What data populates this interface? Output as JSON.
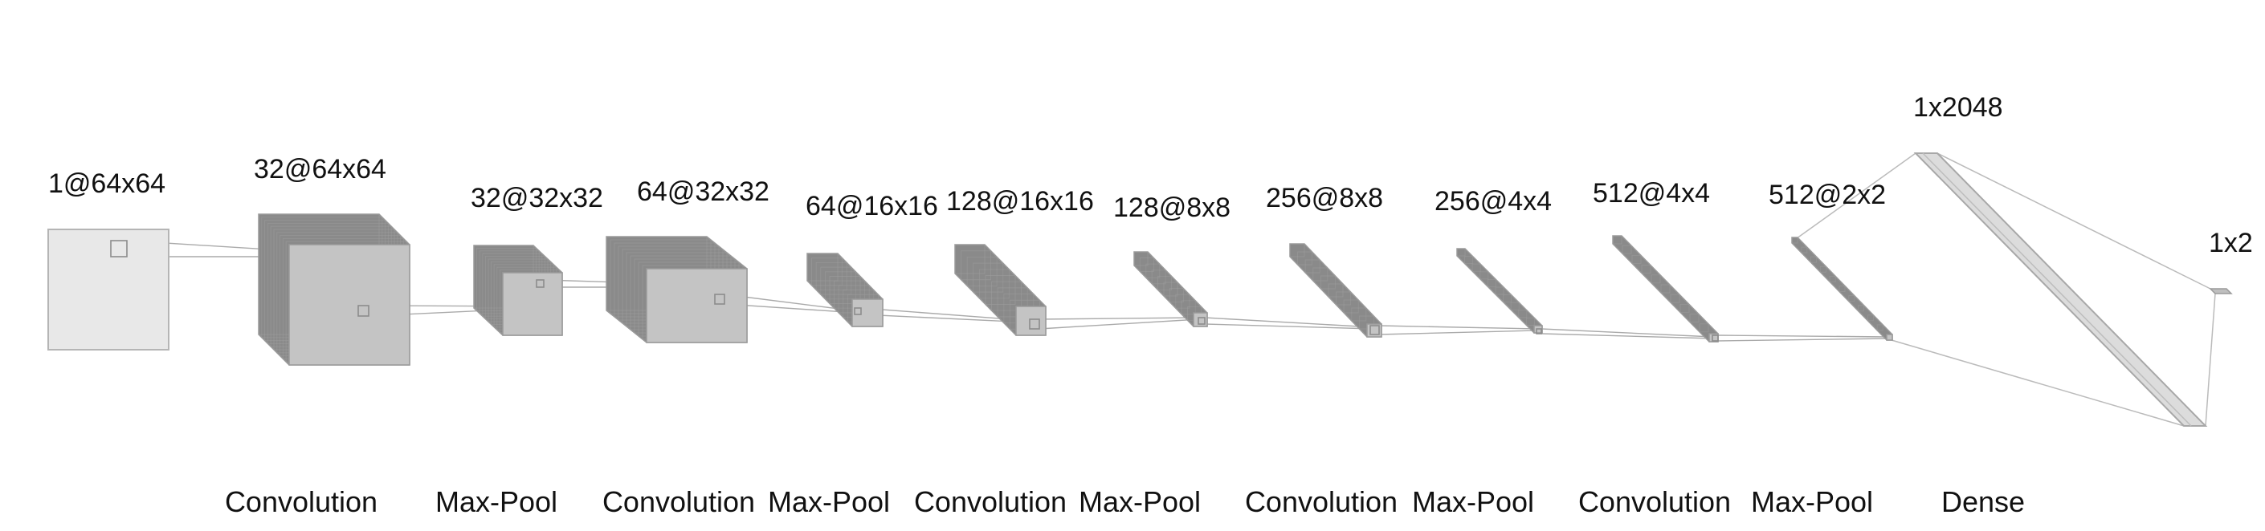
{
  "diagram": {
    "layers": [
      {
        "label": "1@64x64"
      },
      {
        "label": "32@64x64"
      },
      {
        "label": "32@32x32"
      },
      {
        "label": "64@32x32"
      },
      {
        "label": "64@16x16"
      },
      {
        "label": "128@16x16"
      },
      {
        "label": "128@8x8"
      },
      {
        "label": "256@8x8"
      },
      {
        "label": "256@4x4"
      },
      {
        "label": "512@4x4"
      },
      {
        "label": "512@2x2"
      },
      {
        "label": "1x2048"
      },
      {
        "label": "1x2"
      }
    ],
    "operations": [
      "Convolution",
      "Max-Pool",
      "Convolution",
      "Max-Pool",
      "Convolution",
      "Max-Pool",
      "Convolution",
      "Max-Pool",
      "Convolution",
      "Max-Pool",
      "Dense"
    ],
    "colors": {
      "fill_light": "#e6e6e6",
      "fill_mid": "#c4c4c4",
      "fill_dark": "#8a8a8a",
      "edge": "#9a9a9a",
      "connector": "#aaaaaa"
    }
  }
}
